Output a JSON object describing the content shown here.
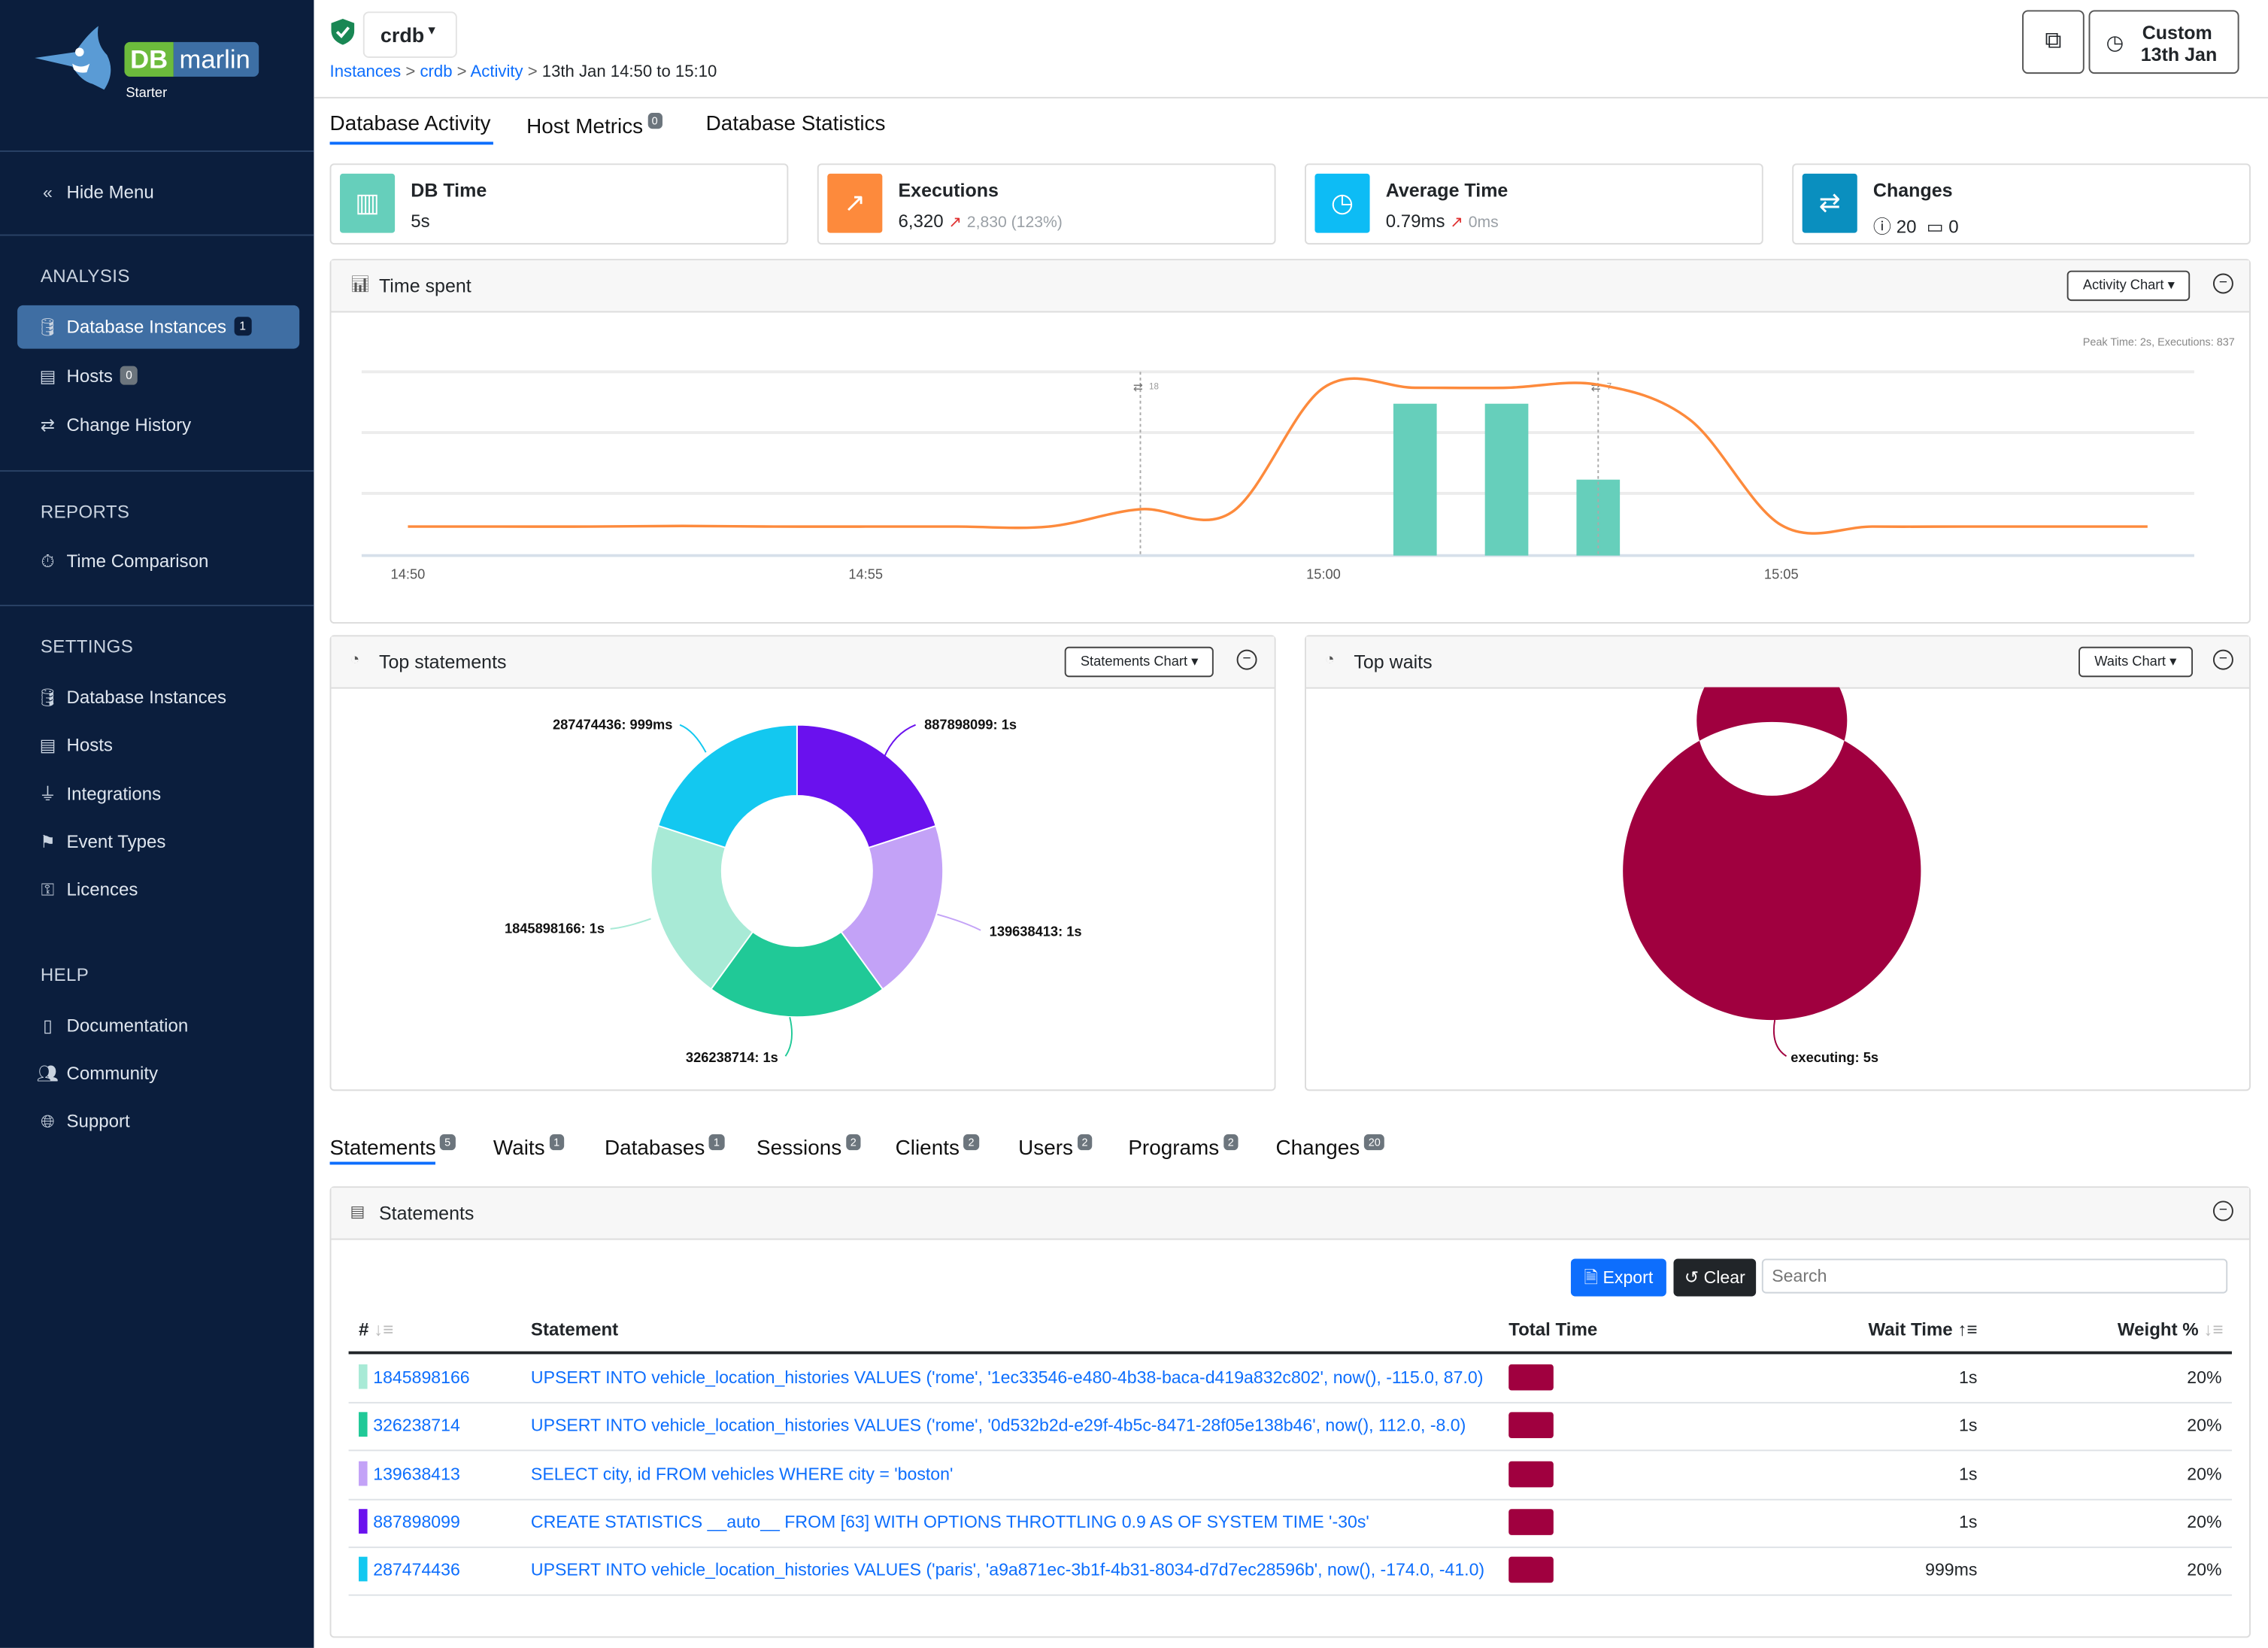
{
  "brand": {
    "logo_text_db": "DB",
    "logo_text_marlin": "marlin",
    "edition": "Starter",
    "colors": {
      "green": "#6cbb3c",
      "blue": "#3d6fa5"
    }
  },
  "sidebar": {
    "hide_menu": "Hide Menu",
    "sections": [
      {
        "title": "ANALYSIS",
        "items": [
          {
            "label": "Database Instances",
            "icon": "database-icon",
            "badge": "1",
            "active": true
          },
          {
            "label": "Hosts",
            "icon": "server-icon",
            "badge": "0"
          },
          {
            "label": "Change History",
            "icon": "arrows-exchange-icon"
          }
        ]
      },
      {
        "title": "REPORTS",
        "items": [
          {
            "label": "Time Comparison",
            "icon": "stopwatch-icon"
          }
        ]
      },
      {
        "title": "SETTINGS",
        "items": [
          {
            "label": "Database Instances",
            "icon": "database-icon"
          },
          {
            "label": "Hosts",
            "icon": "server-icon"
          },
          {
            "label": "Integrations",
            "icon": "plug-icon"
          },
          {
            "label": "Event Types",
            "icon": "event-icon"
          },
          {
            "label": "Licences",
            "icon": "key-icon"
          }
        ]
      },
      {
        "title": "HELP",
        "items": [
          {
            "label": "Documentation",
            "icon": "book-icon"
          },
          {
            "label": "Community",
            "icon": "people-icon"
          },
          {
            "label": "Support",
            "icon": "globe-icon"
          }
        ]
      }
    ]
  },
  "header": {
    "instance": "crdb",
    "breadcrumb": [
      "Instances",
      "crdb",
      "Activity",
      "13th Jan 14:50 to 15:10"
    ],
    "time_button": {
      "line1": "Custom",
      "line2": "13th Jan"
    }
  },
  "main_tabs": [
    {
      "label": "Database Activity",
      "active": true
    },
    {
      "label": "Host Metrics",
      "badge": "0"
    },
    {
      "label": "Database Statistics"
    }
  ],
  "cards": [
    {
      "title": "DB Time",
      "value": "5s",
      "color": "#66cfbb",
      "icon": "bar-chart-icon"
    },
    {
      "title": "Executions",
      "value": "6,320",
      "delta": "2,830 (123%)",
      "color": "#fd8a3c",
      "icon": "trend-chart-icon"
    },
    {
      "title": "Average Time",
      "value": "0.79ms",
      "delta": "0ms",
      "color": "#0dbcf5",
      "icon": "clock-icon"
    },
    {
      "title": "Changes",
      "value_info": "20",
      "value_cal": "0",
      "color": "#0a8fbf",
      "icon": "arrows-exchange-icon"
    }
  ],
  "time_spent": {
    "title": "Time spent",
    "dropdown": "Activity Chart",
    "peak_text": "Peak Time: 2s, Executions: 837"
  },
  "chart_data": [
    {
      "type": "bar+line",
      "x_ticks": [
        "14:50",
        "14:55",
        "15:00",
        "15:05"
      ],
      "x": [
        "14:50",
        "14:51",
        "14:52",
        "14:53",
        "14:54",
        "14:55",
        "14:56",
        "14:57",
        "14:58",
        "14:59",
        "15:00",
        "15:01",
        "15:02",
        "15:03",
        "15:04",
        "15:05",
        "15:06",
        "15:07",
        "15:08",
        "15:09"
      ],
      "series": [
        {
          "kind": "line",
          "color": "#fd8a3c",
          "values": [
            142,
            142,
            142,
            145,
            142,
            142,
            142,
            142,
            227,
            213,
            822,
            822,
            822,
            837,
            666,
            149,
            142,
            142,
            142,
            142
          ],
          "ylim": [
            0,
            900
          ]
        },
        {
          "kind": "bar",
          "color": "#66cfbb",
          "points": [
            {
              "x": "15:01",
              "y": 2
            },
            {
              "x": "15:02",
              "y": 2
            },
            {
              "x": "15:03",
              "y": 1
            }
          ],
          "ylim": [
            0,
            2.42
          ]
        }
      ],
      "markers": [
        {
          "x": "14:58",
          "label": "18"
        },
        {
          "x": "15:03",
          "label": "7"
        }
      ],
      "grid": true
    },
    {
      "type": "pie",
      "donut": true,
      "title": "Top statements",
      "slices": [
        {
          "label": "887898099: 1s",
          "value": 1,
          "color": "#6a11ee"
        },
        {
          "label": "139638413: 1s",
          "value": 1,
          "color": "#c3a2f7"
        },
        {
          "label": "326238714: 1s",
          "value": 1,
          "color": "#20c997"
        },
        {
          "label": "1845898166: 1s",
          "value": 1,
          "color": "#a8ead6"
        },
        {
          "label": "287474436: 999ms",
          "value": 0.999,
          "color": "#13c8f0"
        }
      ]
    },
    {
      "type": "pie",
      "donut": true,
      "title": "Top waits",
      "slices": [
        {
          "label": "executing: 5s",
          "value": 5,
          "color": "#a0003f"
        }
      ]
    }
  ],
  "top_statements": {
    "title": "Top statements",
    "dropdown": "Statements Chart"
  },
  "top_waits": {
    "title": "Top waits",
    "dropdown": "Waits Chart"
  },
  "bottom_tabs": [
    {
      "label": "Statements",
      "badge": "5",
      "active": true
    },
    {
      "label": "Waits",
      "badge": "1"
    },
    {
      "label": "Databases",
      "badge": "1"
    },
    {
      "label": "Sessions",
      "badge": "2"
    },
    {
      "label": "Clients",
      "badge": "2"
    },
    {
      "label": "Users",
      "badge": "2"
    },
    {
      "label": "Programs",
      "badge": "2"
    },
    {
      "label": "Changes",
      "badge": "20"
    }
  ],
  "statements": {
    "title": "Statements",
    "export": "Export",
    "clear": "Clear",
    "search_placeholder": "Search",
    "columns": [
      "#",
      "Statement",
      "Total Time",
      "Wait Time",
      "Weight %"
    ],
    "rows": [
      {
        "id": "1845898166",
        "statement": "UPSERT INTO vehicle_location_histories VALUES ('rome', '1ec33546-e480-4b38-baca-d419a832c802', now(), -115.0, 87.0)",
        "wait": "1s",
        "weight": "20%",
        "color": "#a8ead6"
      },
      {
        "id": "326238714",
        "statement": "UPSERT INTO vehicle_location_histories VALUES ('rome', '0d532b2d-e29f-4b5c-8471-28f05e138b46', now(), 112.0, -8.0)",
        "wait": "1s",
        "weight": "20%",
        "color": "#20c997"
      },
      {
        "id": "139638413",
        "statement": "SELECT city, id FROM vehicles WHERE city = 'boston'",
        "wait": "1s",
        "weight": "20%",
        "color": "#c3a2f7"
      },
      {
        "id": "887898099",
        "statement": "CREATE STATISTICS __auto__ FROM [63] WITH OPTIONS THROTTLING 0.9 AS OF SYSTEM TIME '-30s'",
        "wait": "1s",
        "weight": "20%",
        "color": "#6a11ee"
      },
      {
        "id": "287474436",
        "statement": "UPSERT INTO vehicle_location_histories VALUES ('paris', 'a9a871ec-3b1f-4b31-8034-d7d7ec28596b', now(), -174.0, -41.0)",
        "wait": "999ms",
        "weight": "20%",
        "color": "#13c8f0"
      }
    ]
  }
}
